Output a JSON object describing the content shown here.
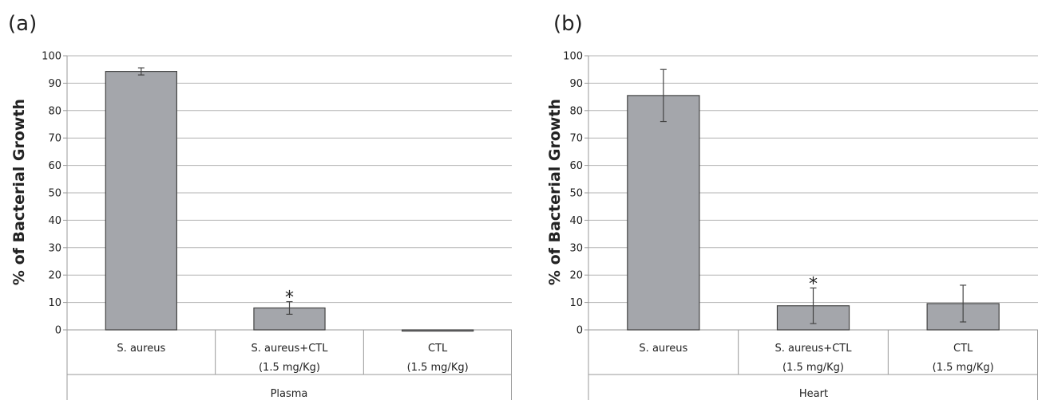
{
  "chart_data": [
    {
      "type": "bar",
      "panel_label": "(a)",
      "ylabel": "% of Bacterial Growth",
      "ylim": [
        0,
        100
      ],
      "yticks": [
        0,
        10,
        20,
        30,
        40,
        50,
        60,
        70,
        80,
        90,
        100
      ],
      "grid": true,
      "group_label": "Plasma",
      "categories": [
        {
          "line1": "S. aureus",
          "line2": ""
        },
        {
          "line1": "S. aureus+CTL",
          "line2": "(1.5 mg/Kg)"
        },
        {
          "line1": "CTL",
          "line2": "(1.5 mg/Kg)"
        }
      ],
      "values": [
        94.3,
        8.0,
        -0.3
      ],
      "errors": [
        1.3,
        2.3,
        0.0
      ],
      "significance": [
        "",
        "*",
        ""
      ],
      "bar_color": "#a4a6ab"
    },
    {
      "type": "bar",
      "panel_label": "(b)",
      "ylabel": "% of Bacterial Growth",
      "ylim": [
        0,
        100
      ],
      "yticks": [
        0,
        10,
        20,
        30,
        40,
        50,
        60,
        70,
        80,
        90,
        100
      ],
      "grid": true,
      "group_label": "Heart",
      "categories": [
        {
          "line1": "S. aureus",
          "line2": ""
        },
        {
          "line1": "S. aureus+CTL",
          "line2": "(1.5 mg/Kg)"
        },
        {
          "line1": "CTL",
          "line2": "(1.5 mg/Kg)"
        }
      ],
      "values": [
        85.5,
        8.8,
        9.6
      ],
      "errors": [
        9.5,
        6.5,
        6.7
      ],
      "significance": [
        "",
        "*",
        ""
      ],
      "bar_color": "#a4a6ab"
    }
  ]
}
